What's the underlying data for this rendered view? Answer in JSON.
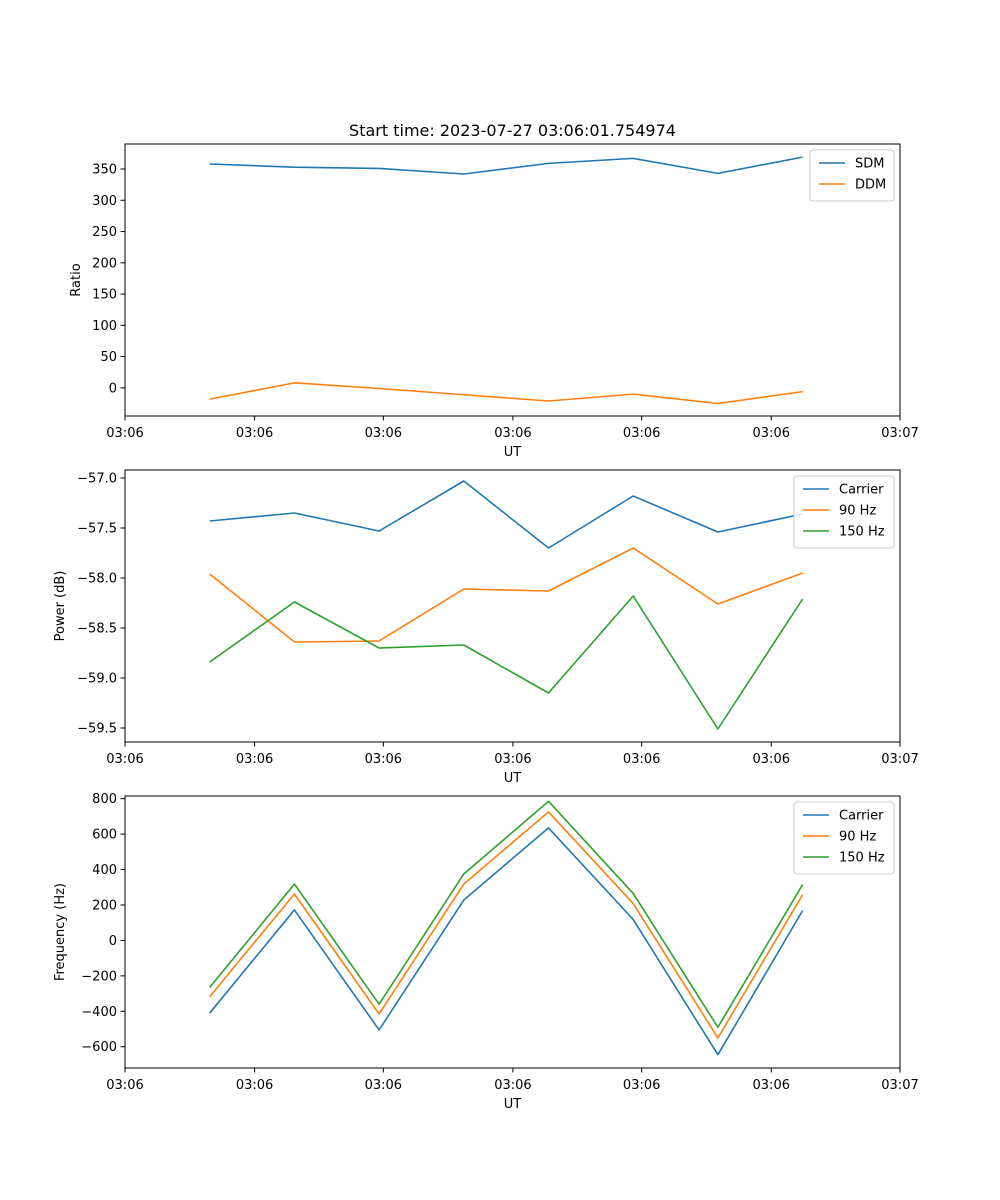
{
  "figure": {
    "title": "Start time: 2023-07-27 03:06:01.754974"
  },
  "colors": {
    "series1": "#1f77b4",
    "series2": "#ff7f0e",
    "series3": "#2ca02c",
    "axis": "#000000",
    "legend_border": "#cccccc"
  },
  "chart_data": [
    {
      "type": "line",
      "title": "Start time: 2023-07-27 03:06:01.754974",
      "xlabel": "UT",
      "ylabel": "Ratio",
      "x_index": [
        1,
        2,
        3,
        4,
        5,
        6,
        7,
        8
      ],
      "xlim": [
        0,
        9.15
      ],
      "x_ticks": [
        0,
        1.53,
        3.05,
        4.58,
        6.1,
        7.63,
        9.15
      ],
      "x_tick_labels": [
        "03:06",
        "03:06",
        "03:06",
        "03:06",
        "03:06",
        "03:06",
        "03:07"
      ],
      "ylim": [
        -45,
        390
      ],
      "y_ticks": [
        0,
        50,
        100,
        150,
        200,
        250,
        300,
        350
      ],
      "y_tick_labels": [
        "0",
        "50",
        "100",
        "150",
        "200",
        "250",
        "300",
        "350"
      ],
      "legend_position": "top-right",
      "series": [
        {
          "name": "SDM",
          "color": "#1f77b4",
          "values": [
            358,
            353,
            351,
            342,
            359,
            367,
            343,
            369
          ]
        },
        {
          "name": "DDM",
          "color": "#ff7f0e",
          "values": [
            -18,
            8,
            -1,
            -11,
            -21,
            -10,
            -25,
            -6
          ]
        }
      ]
    },
    {
      "type": "line",
      "title": "",
      "xlabel": "UT",
      "ylabel": "Power (dB)",
      "x_index": [
        1,
        2,
        3,
        4,
        5,
        6,
        7,
        8
      ],
      "xlim": [
        0,
        9.15
      ],
      "x_ticks": [
        0,
        1.53,
        3.05,
        4.58,
        6.1,
        7.63,
        9.15
      ],
      "x_tick_labels": [
        "03:06",
        "03:06",
        "03:06",
        "03:06",
        "03:06",
        "03:06",
        "03:07"
      ],
      "ylim": [
        -59.64,
        -56.92
      ],
      "y_ticks": [
        -59.5,
        -59.0,
        -58.5,
        -58.0,
        -57.5,
        -57.0
      ],
      "y_tick_labels": [
        "−59.5",
        "−59.0",
        "−58.5",
        "−58.0",
        "−57.5",
        "−57.0"
      ],
      "legend_position": "top-right",
      "series": [
        {
          "name": "Carrier",
          "color": "#1f77b4",
          "values": [
            -57.43,
            -57.35,
            -57.53,
            -57.03,
            -57.7,
            -57.18,
            -57.54,
            -57.36
          ]
        },
        {
          "name": "90 Hz",
          "color": "#ff7f0e",
          "values": [
            -57.96,
            -58.64,
            -58.63,
            -58.11,
            -58.13,
            -57.7,
            -58.26,
            -57.95
          ]
        },
        {
          "name": "150 Hz",
          "color": "#2ca02c",
          "values": [
            -58.84,
            -58.24,
            -58.7,
            -58.67,
            -59.15,
            -58.18,
            -59.51,
            -58.21
          ]
        }
      ]
    },
    {
      "type": "line",
      "title": "",
      "xlabel": "UT",
      "ylabel": "Frequency (Hz)",
      "x_index": [
        1,
        2,
        3,
        4,
        5,
        6,
        7,
        8
      ],
      "xlim": [
        0,
        9.15
      ],
      "x_ticks": [
        0,
        1.53,
        3.05,
        4.58,
        6.1,
        7.63,
        9.15
      ],
      "x_tick_labels": [
        "03:06",
        "03:06",
        "03:06",
        "03:06",
        "03:06",
        "03:06",
        "03:07"
      ],
      "ylim": [
        -720,
        815
      ],
      "y_ticks": [
        -600,
        -400,
        -200,
        0,
        200,
        400,
        600,
        800
      ],
      "y_tick_labels": [
        "−600",
        "−400",
        "−200",
        "0",
        "200",
        "400",
        "600",
        "800"
      ],
      "legend_position": "top-right",
      "series": [
        {
          "name": "Carrier",
          "color": "#1f77b4",
          "values": [
            -410,
            172,
            -505,
            228,
            635,
            118,
            -645,
            168
          ]
        },
        {
          "name": "90 Hz",
          "color": "#ff7f0e",
          "values": [
            -318,
            262,
            -415,
            318,
            725,
            208,
            -550,
            258
          ]
        },
        {
          "name": "150 Hz",
          "color": "#2ca02c",
          "values": [
            -265,
            318,
            -360,
            375,
            785,
            265,
            -490,
            315
          ]
        }
      ]
    }
  ]
}
